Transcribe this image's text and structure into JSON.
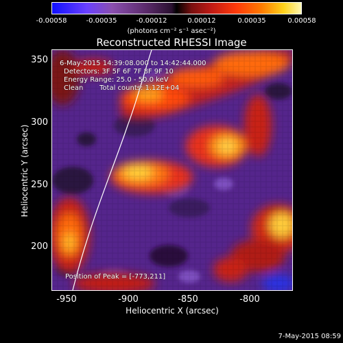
{
  "colorbar": {
    "tick_labels": [
      "-0.00058",
      "-0.00035",
      "-0.00012",
      "0.00012",
      "0.00035",
      "0.00058"
    ],
    "units": "(photons cm⁻² s⁻¹ asec⁻²)"
  },
  "title": "Reconstructed RHESSI Image",
  "annotations": {
    "time_range": "6-May-2015 14:39:08.000 to 14:42:44.000",
    "detectors": "Detectors: 3F 5F 6F 7F 8F 9F 10",
    "energy_range": "Energy Range: 25.0 - 50.0 keV",
    "clean": "Clean",
    "total_counts": "Total counts: 1.12E+04",
    "peak_position": "Position of Peak = [-773,211]"
  },
  "axes": {
    "x_label": "Heliocentric X (arcsec)",
    "y_label": "Heliocentric Y (arcsec)",
    "x_ticks": [
      "-950",
      "-900",
      "-850",
      "-800"
    ],
    "y_ticks": [
      "350",
      "300",
      "250",
      "200"
    ],
    "x_tick_values": [
      -950,
      -900,
      -850,
      -800
    ],
    "y_tick_values": [
      350,
      300,
      250,
      200
    ],
    "x_range": [
      -960,
      -860
    ],
    "y_range": [
      165,
      355
    ]
  },
  "timestamp": "7-May-2015 08:59",
  "colors": {
    "background": "#000000",
    "text": "#ffffff",
    "limb_line": "#ffffff",
    "colormap_low": "#1010ff",
    "colormap_mid": "#000000",
    "colormap_high": "#fff6b0"
  }
}
